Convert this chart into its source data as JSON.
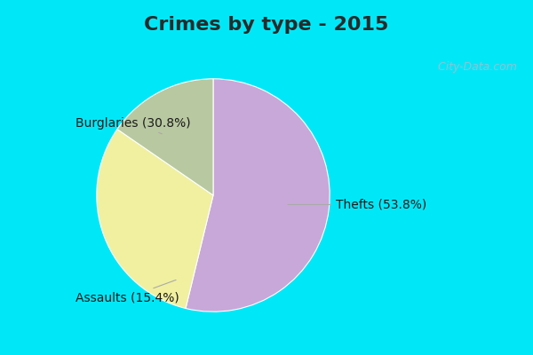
{
  "title": "Crimes by type - 2015",
  "slices": [
    {
      "label": "Thefts",
      "pct": 53.8,
      "color": "#c8a8d8"
    },
    {
      "label": "Burglaries",
      "pct": 30.8,
      "color": "#f0f0a0"
    },
    {
      "label": "Assaults",
      "pct": 15.4,
      "color": "#b8c8a0"
    }
  ],
  "background_cyan": "#00e8f8",
  "background_main": "#d0e8d8",
  "title_fontsize": 16,
  "label_fontsize": 10,
  "watermark": " City-Data.com",
  "title_color": "#2a2a2a",
  "label_color": "#1a1a1a",
  "border_thickness": 0.04
}
